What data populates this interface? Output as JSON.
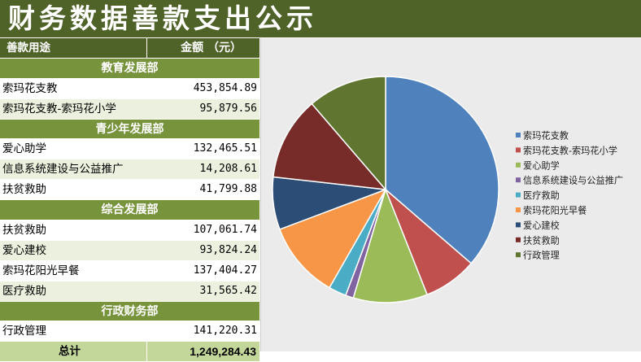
{
  "title": "财务数据善款支出公示",
  "table": {
    "header": {
      "purpose": "善款用途",
      "amount": "金额 （元）"
    },
    "sections": [
      {
        "name": "教育发展部",
        "rows": [
          {
            "purpose": "索玛花支教",
            "amount": "453,854.89"
          },
          {
            "purpose": "索玛花支教-索玛花小学",
            "amount": "95,879.56"
          }
        ]
      },
      {
        "name": "青少年发展部",
        "rows": [
          {
            "purpose": "爱心助学",
            "amount": "132,465.51"
          },
          {
            "purpose": "信息系统建设与公益推广",
            "amount": "14,208.61"
          },
          {
            "purpose": "扶贫救助",
            "amount": "41,799.88"
          }
        ]
      },
      {
        "name": "综合发展部",
        "rows": [
          {
            "purpose": "扶贫救助",
            "amount": "107,061.74"
          },
          {
            "purpose": "爱心建校",
            "amount": "93,824.24"
          },
          {
            "purpose": "索玛花阳光早餐",
            "amount": "137,404.27"
          },
          {
            "purpose": "医疗救助",
            "amount": "31,565.42"
          }
        ]
      },
      {
        "name": "行政财务部",
        "rows": [
          {
            "purpose": "行政管理",
            "amount": "141,220.31"
          }
        ]
      }
    ],
    "total": {
      "label": "总计",
      "amount": "1,249,284.43"
    }
  },
  "chart_data": {
    "type": "pie",
    "legend_position": "right",
    "series": [
      {
        "name": "索玛花支教",
        "value": 453854.89,
        "color": "#4f81bd"
      },
      {
        "name": "索玛花支教-索玛花小学",
        "value": 95879.56,
        "color": "#c0504d"
      },
      {
        "name": "爱心助学",
        "value": 132465.51,
        "color": "#9bbb59"
      },
      {
        "name": "信息系统建设与公益推广",
        "value": 14208.61,
        "color": "#8064a2"
      },
      {
        "name": "医疗救助",
        "value": 31565.42,
        "color": "#4bacc6"
      },
      {
        "name": "索玛花阳光早餐",
        "value": 137404.27,
        "color": "#f79646"
      },
      {
        "name": "爱心建校",
        "value": 93824.24,
        "color": "#2c4d75"
      },
      {
        "name": "扶贫救助",
        "value": 148861.62,
        "color": "#772c2a"
      },
      {
        "name": "行政管理",
        "value": 141220.31,
        "color": "#5f7530"
      }
    ]
  }
}
